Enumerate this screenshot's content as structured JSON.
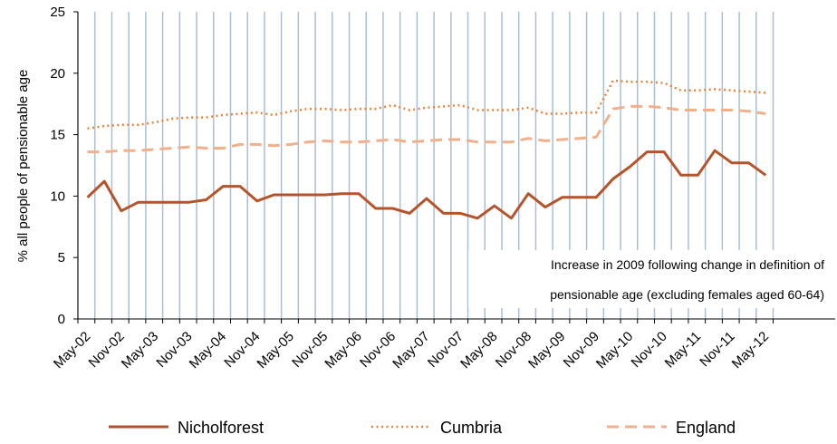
{
  "chart_data": {
    "type": "line",
    "title": "",
    "ylabel": "% all people of pensionable age",
    "xlabel": "",
    "ylim": [
      0,
      25
    ],
    "yticks": [
      0,
      5,
      10,
      15,
      20,
      25
    ],
    "grid": "vertical lines at each data point",
    "x": [
      "May-02",
      "Aug-02",
      "Nov-02",
      "Feb-03",
      "May-03",
      "Aug-03",
      "Nov-03",
      "Feb-04",
      "May-04",
      "Aug-04",
      "Nov-04",
      "Feb-05",
      "May-05",
      "Aug-05",
      "Nov-05",
      "Feb-06",
      "May-06",
      "Aug-06",
      "Nov-06",
      "Feb-07",
      "May-07",
      "Aug-07",
      "Nov-07",
      "Feb-08",
      "May-08",
      "Aug-08",
      "Nov-08",
      "Feb-09",
      "May-09",
      "Aug-09",
      "Nov-09",
      "Feb-10",
      "May-10",
      "Aug-10",
      "Nov-10",
      "Feb-11",
      "May-11",
      "Aug-11",
      "Nov-11",
      "Feb-12",
      "May-12"
    ],
    "x_tick_labels": [
      "May-02",
      "Nov-02",
      "May-03",
      "Nov-03",
      "May-04",
      "Nov-04",
      "May-05",
      "Nov-05",
      "May-06",
      "Nov-06",
      "May-07",
      "Nov-07",
      "May-08",
      "Nov-08",
      "May-09",
      "Nov-09",
      "May-10",
      "Nov-10",
      "May-11",
      "Nov-11",
      "May-12"
    ],
    "series": [
      {
        "name": "Nicholforest",
        "color": "#b5532a",
        "style": "solid",
        "values": [
          9.9,
          11.2,
          8.8,
          9.5,
          9.5,
          9.5,
          9.5,
          9.7,
          10.8,
          10.8,
          9.6,
          10.1,
          10.1,
          10.1,
          10.1,
          10.2,
          10.2,
          9.0,
          9.0,
          8.6,
          9.8,
          8.6,
          8.6,
          8.2,
          9.2,
          8.2,
          10.2,
          9.1,
          9.9,
          9.9,
          9.9,
          11.4,
          12.4,
          13.6,
          13.6,
          11.7,
          11.7,
          13.7,
          12.7,
          12.7,
          11.7
        ]
      },
      {
        "name": "Cumbria",
        "color": "#e8833a",
        "style": "dotted",
        "values": [
          15.5,
          15.7,
          15.8,
          15.8,
          16.0,
          16.3,
          16.4,
          16.4,
          16.6,
          16.7,
          16.8,
          16.6,
          16.9,
          17.1,
          17.1,
          17.0,
          17.1,
          17.1,
          17.4,
          17.0,
          17.2,
          17.3,
          17.4,
          17.0,
          17.0,
          17.0,
          17.2,
          16.7,
          16.7,
          16.8,
          16.8,
          19.4,
          19.3,
          19.3,
          19.2,
          18.6,
          18.6,
          18.7,
          18.6,
          18.5,
          18.4
        ]
      },
      {
        "name": "England",
        "color": "#f2b08a",
        "style": "dashed",
        "values": [
          13.6,
          13.6,
          13.7,
          13.7,
          13.8,
          13.9,
          14.0,
          13.9,
          13.9,
          14.2,
          14.2,
          14.1,
          14.2,
          14.4,
          14.5,
          14.4,
          14.4,
          14.5,
          14.6,
          14.4,
          14.5,
          14.6,
          14.6,
          14.4,
          14.4,
          14.4,
          14.7,
          14.5,
          14.6,
          14.7,
          14.8,
          17.1,
          17.3,
          17.3,
          17.2,
          17.0,
          17.0,
          17.0,
          17.0,
          16.9,
          16.7
        ]
      }
    ],
    "annotation": {
      "line1": "Increase in 2009 following change in definition of",
      "line2": "pensionable age (excluding females aged 60-64)"
    },
    "legend_position": "bottom"
  }
}
